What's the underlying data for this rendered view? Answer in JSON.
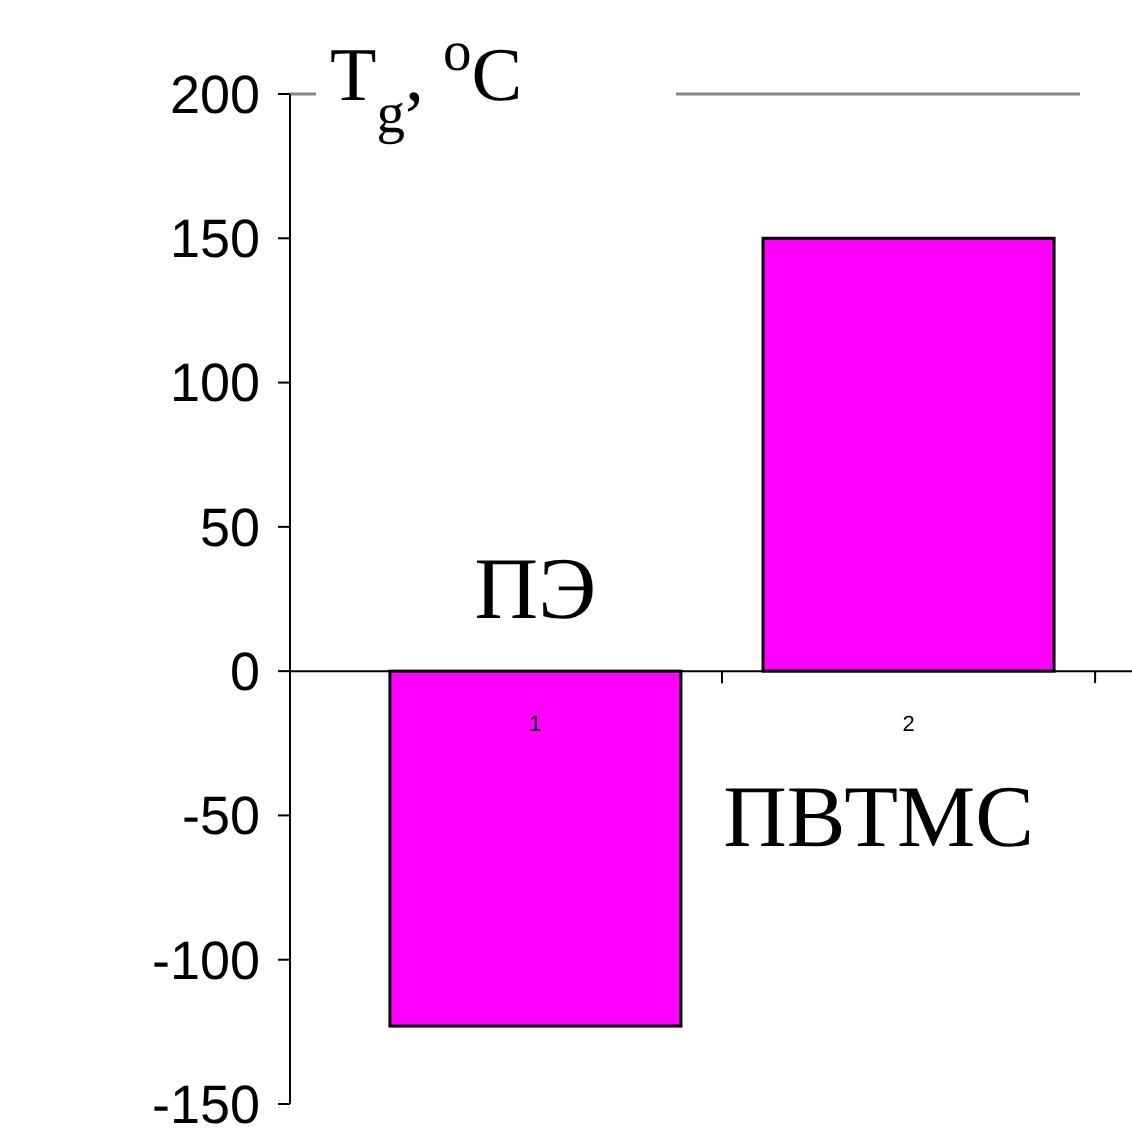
{
  "chart_data": {
    "type": "bar",
    "ylabel": "T$_{g}$, $^{o}$C",
    "categories": [
      "1",
      "2"
    ],
    "values": [
      -123,
      150
    ],
    "color": "#ff00ff",
    "ylim": [
      -150,
      200
    ],
    "yticks": [
      -150,
      -100,
      -50,
      0,
      50,
      100,
      150,
      200
    ],
    "grid": false,
    "annotations": [
      "ПЭ",
      "ПВТМС"
    ]
  }
}
